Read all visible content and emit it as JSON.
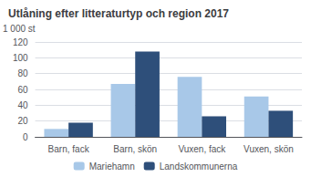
{
  "chart_data": {
    "type": "bar",
    "title": "Utlåning efter litteraturtyp och region 2017",
    "ylabel": "1 000 st",
    "categories": [
      "Barn, fack",
      "Barn, skön",
      "Vuxen, fack",
      "Vuxen, skön"
    ],
    "series": [
      {
        "name": "Mariehamn",
        "color": "#a8c8e8",
        "values": [
          10,
          67,
          76,
          51
        ]
      },
      {
        "name": "Landskommunerna",
        "color": "#2e4f7a",
        "values": [
          18,
          108,
          26,
          33
        ]
      }
    ],
    "ylim": [
      0,
      120
    ],
    "yticks": [
      0,
      20,
      40,
      60,
      80,
      100,
      120
    ],
    "grid": true,
    "legend": "bottom"
  }
}
